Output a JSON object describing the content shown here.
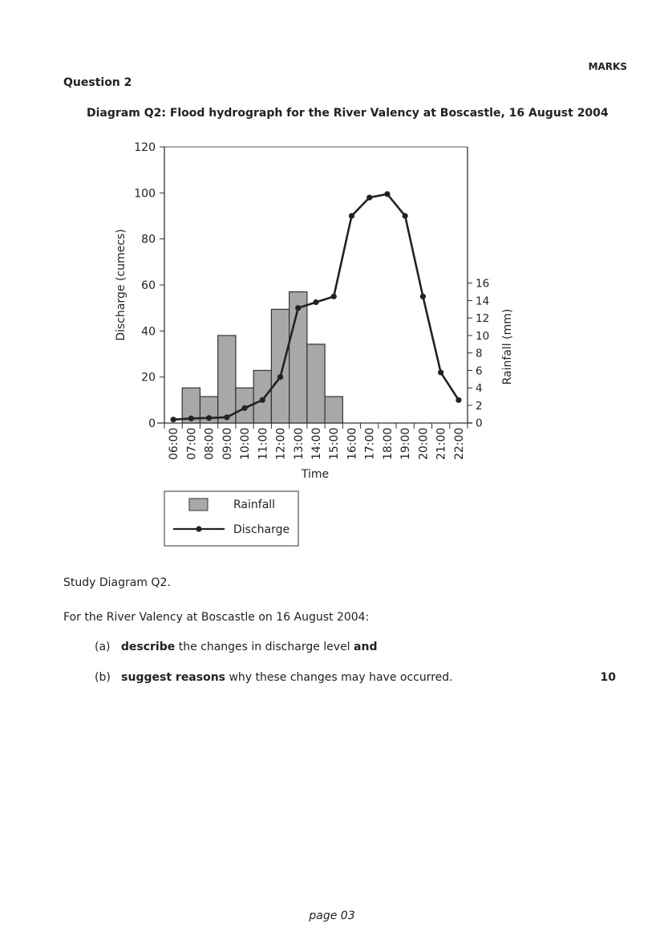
{
  "header": {
    "marks_label": "MARKS",
    "question": "Question 2"
  },
  "chart_data": {
    "type": "bar+line",
    "title": "Diagram Q2: Flood hydrograph for the River Valency at Boscastle, 16 August 2004",
    "xlabel": "Time",
    "ylabel": "Discharge (cumecs)",
    "y2label": "Rainfall (mm)",
    "categories": [
      "06:00",
      "07:00",
      "08:00",
      "09:00",
      "10:00",
      "11:00",
      "12:00",
      "13:00",
      "14:00",
      "15:00",
      "16:00",
      "17:00",
      "18:00",
      "19:00",
      "20:00",
      "21:00",
      "22:00"
    ],
    "ylim": [
      0,
      120
    ],
    "yticks": [
      0,
      20,
      40,
      60,
      80,
      100,
      120
    ],
    "y2lim": [
      0,
      16
    ],
    "y2ticks": [
      0,
      2,
      4,
      6,
      8,
      10,
      12,
      14,
      16
    ],
    "series": [
      {
        "name": "Rainfall",
        "type": "bar",
        "axis": "right",
        "values": [
          0,
          4,
          3,
          10,
          4,
          6,
          13,
          15,
          9,
          3,
          0,
          0,
          0,
          0,
          0,
          0,
          0
        ]
      },
      {
        "name": "Discharge",
        "type": "line",
        "axis": "left",
        "values": [
          1.5,
          2,
          2.2,
          2.5,
          6.5,
          10,
          20,
          50,
          52.5,
          55,
          90,
          98,
          99.5,
          90,
          55,
          22,
          10
        ]
      }
    ],
    "legend": [
      "Rainfall",
      "Discharge"
    ],
    "legend_position": "bottom-left",
    "colors": {
      "bar": "#a8a8a8",
      "line": "#222222"
    }
  },
  "body": {
    "study": "Study Diagram Q2.",
    "intro": "For the River Valency at Boscastle on 16 August 2004:",
    "a_label": "(a)",
    "a_bold1": "describe",
    "a_text": " the changes in discharge level ",
    "a_bold2": "and",
    "b_label": "(b)",
    "b_bold": "suggest reasons",
    "b_text": " why these changes may have occurred.",
    "b_marks": "10"
  },
  "footer": {
    "page": "page 03"
  }
}
